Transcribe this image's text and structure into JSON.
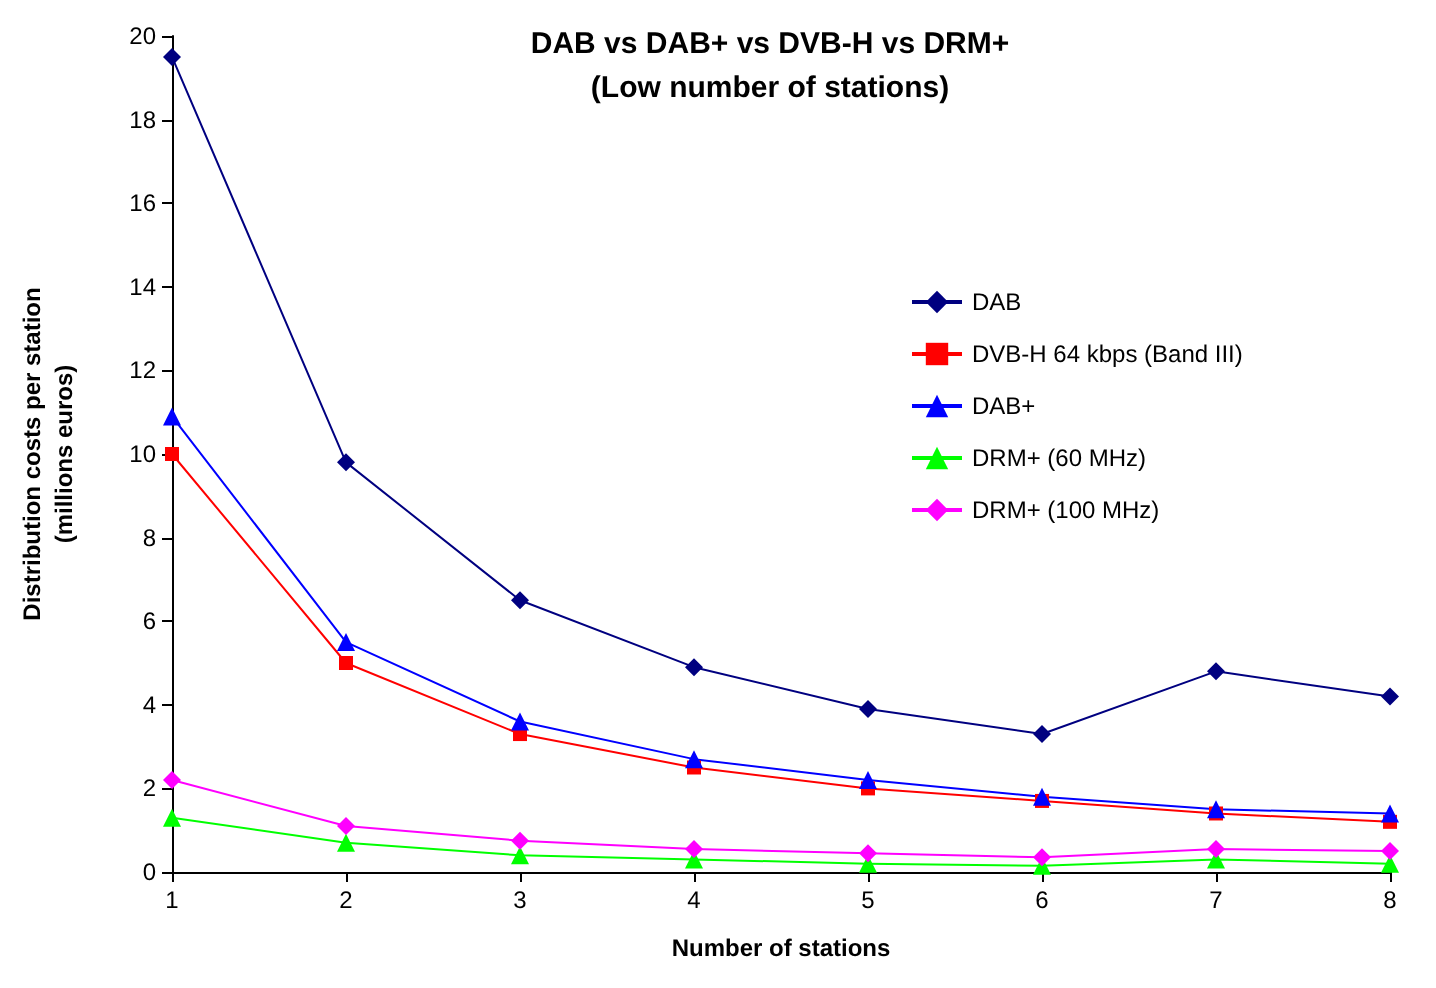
{
  "chart_data": {
    "type": "line",
    "title": "DAB vs DAB+ vs DVB-H vs DRM+\n(Low number of stations)",
    "xlabel": "Number of stations",
    "ylabel": "Distribution costs per station\n(millions euros)",
    "x": [
      1,
      2,
      3,
      4,
      5,
      6,
      7,
      8
    ],
    "series": [
      {
        "name": "DAB",
        "color": "#000080",
        "marker": "diamond",
        "values": [
          19.5,
          9.8,
          6.5,
          4.9,
          3.9,
          3.3,
          4.8,
          4.2
        ]
      },
      {
        "name": "DVB-H 64 kbps (Band III)",
        "color": "#ff0000",
        "marker": "square",
        "values": [
          10.0,
          5.0,
          3.3,
          2.5,
          2.0,
          1.7,
          1.4,
          1.2
        ]
      },
      {
        "name": "DAB+",
        "color": "#0000ff",
        "marker": "triangle",
        "values": [
          10.9,
          5.5,
          3.6,
          2.7,
          2.2,
          1.8,
          1.5,
          1.4
        ]
      },
      {
        "name": "DRM+ (60 MHz)",
        "color": "#00ff00",
        "marker": "triangle",
        "values": [
          1.3,
          0.7,
          0.4,
          0.3,
          0.2,
          0.15,
          0.3,
          0.2
        ]
      },
      {
        "name": "DRM+ (100 MHz)",
        "color": "#ff00ff",
        "marker": "diamond",
        "values": [
          2.2,
          1.1,
          0.75,
          0.55,
          0.45,
          0.35,
          0.55,
          0.5
        ]
      }
    ],
    "xlim": [
      1,
      8
    ],
    "xticks": [
      1,
      2,
      3,
      4,
      5,
      6,
      7,
      8
    ],
    "ylim": [
      0,
      20
    ],
    "yticks": [
      0,
      2,
      4,
      6,
      8,
      10,
      12,
      14,
      16,
      18,
      20
    ],
    "grid": false,
    "legend": "right",
    "line_style": "solid"
  }
}
